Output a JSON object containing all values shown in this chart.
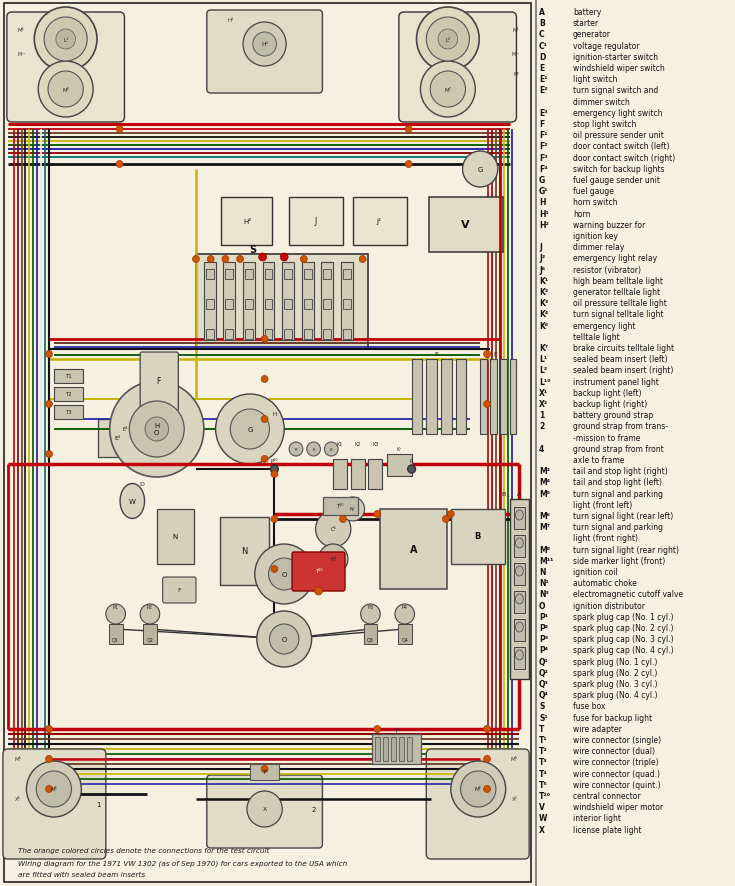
{
  "diagram_bg": "#f5f0e0",
  "legend_bg": "#f0ebe0",
  "border_color": "#222222",
  "figsize": [
    7.35,
    8.87
  ],
  "dpi": 100,
  "legend_items": [
    [
      "A",
      "battery"
    ],
    [
      "B",
      "starter"
    ],
    [
      "C",
      "generator"
    ],
    [
      "C¹",
      "voltage regulator"
    ],
    [
      "D",
      "ignition-starter switch"
    ],
    [
      "E",
      "windshield wiper switch"
    ],
    [
      "E¹",
      "light switch"
    ],
    [
      "E²",
      "turn signal switch and"
    ],
    [
      "",
      "dimmer switch"
    ],
    [
      "E³",
      "emergency light switch"
    ],
    [
      "F",
      "stop light switch"
    ],
    [
      "F¹",
      "oil pressure sender unit"
    ],
    [
      "F²",
      "door contact switch (left)"
    ],
    [
      "F³",
      "door contact switch (right)"
    ],
    [
      "F⁴",
      "switch for backup lights"
    ],
    [
      "G",
      "fuel gauge sender unit"
    ],
    [
      "G¹",
      "fuel gauge"
    ],
    [
      "H",
      "horn switch"
    ],
    [
      "H¹",
      "horn"
    ],
    [
      "H²",
      "warning buzzer for"
    ],
    [
      "",
      "ignition key"
    ],
    [
      "J",
      "dimmer relay"
    ],
    [
      "J²",
      "emergency light relay"
    ],
    [
      "J⁶",
      "resistor (vibrator)"
    ],
    [
      "K¹",
      "high beam telltale light"
    ],
    [
      "K²",
      "generator telltale light"
    ],
    [
      "K³",
      "oil pressure telltale light"
    ],
    [
      "K⁴",
      "turn signal telltale light"
    ],
    [
      "K⁶",
      "emergency light"
    ],
    [
      "",
      "telltale light"
    ],
    [
      "K⁷",
      "brake circuits telltale light"
    ],
    [
      "L¹",
      "sealed beam insert (left)"
    ],
    [
      "L²",
      "sealed beam insert (right)"
    ],
    [
      "L¹⁰",
      "instrument panel light"
    ],
    [
      "X¹",
      "backup light (left)"
    ],
    [
      "X²",
      "backup light (right)"
    ],
    [
      "1",
      "battery ground strap"
    ],
    [
      "2",
      "ground strap from trans-"
    ],
    [
      "",
      "-mission to frame"
    ],
    [
      "4",
      "ground strap from front"
    ],
    [
      "",
      "axle to frame"
    ],
    [
      "M²",
      "tail and stop light (right)"
    ],
    [
      "M⁴",
      "tail and stop light (left)"
    ],
    [
      "M⁵",
      "turn signal and parking"
    ],
    [
      "",
      "light (front left)"
    ],
    [
      "M⁶",
      "turn signal light (rear left)"
    ],
    [
      "M⁷",
      "turn signal and parking"
    ],
    [
      "",
      "light (front right)"
    ],
    [
      "M⁸",
      "turn signal light (rear right)"
    ],
    [
      "M¹¹",
      "side marker light (front)"
    ],
    [
      "N",
      "ignition coil"
    ],
    [
      "N¹",
      "automatic choke"
    ],
    [
      "N³",
      "electromagnetic cutoff valve"
    ],
    [
      "O",
      "ignition distributor"
    ],
    [
      "P¹",
      "spark plug cap (No. 1 cyl.)"
    ],
    [
      "P²",
      "spark plug cap (No. 2 cyl.)"
    ],
    [
      "P³",
      "spark plug cap (No. 3 cyl.)"
    ],
    [
      "P⁴",
      "spark plug cap (No. 4 cyl.)"
    ],
    [
      "Q¹",
      "spark plug (No. 1 cyl.)"
    ],
    [
      "Q²",
      "spark plug (No. 2 cyl.)"
    ],
    [
      "Q³",
      "spark plug (No. 3 cyl.)"
    ],
    [
      "Q⁴",
      "spark plug (No. 4 cyl.)"
    ],
    [
      "S",
      "fuse box"
    ],
    [
      "S¹",
      "fuse for backup light"
    ],
    [
      "T",
      "wire adapter"
    ],
    [
      "T¹",
      "wire connector (single)"
    ],
    [
      "T²",
      "wire connector (dual)"
    ],
    [
      "T³",
      "wire connector (triple)"
    ],
    [
      "T⁴",
      "wire connector (quad.)"
    ],
    [
      "T⁵",
      "wire connector (quint.)"
    ],
    [
      "T²⁰",
      "central connector"
    ],
    [
      "V",
      "windshield wiper motor"
    ],
    [
      "W",
      "interior light"
    ],
    [
      "X",
      "license plate light"
    ]
  ],
  "caption1": "The orange colored circles denote the connections for the test circuit",
  "caption2": "Wiring diagram for the 1971 VW 1302 (as of Sep 1970) for cars exported to the USA which",
  "caption3": "are fitted with sealed beam inserts",
  "wire_colors": {
    "red": "#c0000a",
    "dark_red": "#8b0000",
    "black": "#111111",
    "brown": "#6b3a2a",
    "yellow": "#c8b400",
    "green": "#005500",
    "blue": "#1a1aaa",
    "white": "#e8e8e8",
    "gray": "#777777",
    "orange": "#cc5500",
    "violet": "#550055",
    "teal": "#007070"
  }
}
